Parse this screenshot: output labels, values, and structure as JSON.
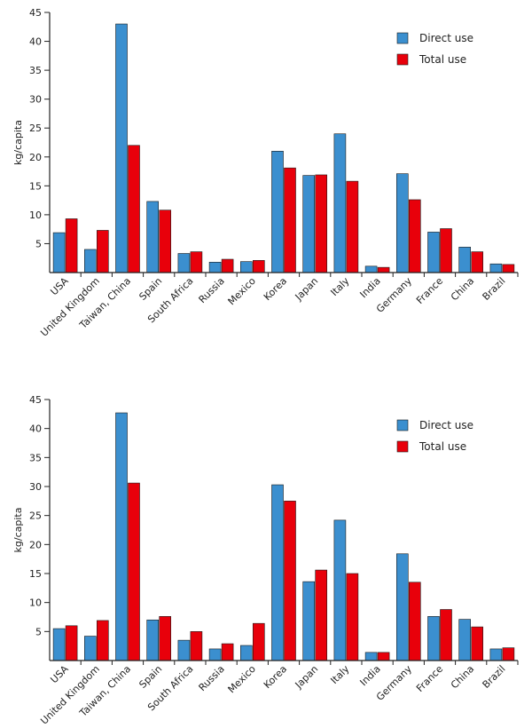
{
  "colors": {
    "direct": "#3b8fcf",
    "total": "#e8000b",
    "axis": "#222222"
  },
  "chart_data": [
    {
      "type": "bar",
      "ylabel": "kg/capita",
      "ylim": [
        0,
        45
      ],
      "yticks": [
        5,
        10,
        15,
        20,
        25,
        30,
        35,
        40,
        45
      ],
      "categories": [
        "USA",
        "United Kingdom",
        "Taiwan, China",
        "Spain",
        "South Africa",
        "Russia",
        "Mexico",
        "Korea",
        "Japan",
        "Italy",
        "India",
        "Germany",
        "France",
        "China",
        "Brazil"
      ],
      "series": [
        {
          "name": "Direct use",
          "values": [
            6.9,
            4.0,
            43.0,
            12.3,
            3.3,
            1.8,
            1.9,
            21.0,
            16.8,
            24.0,
            1.1,
            17.1,
            7.0,
            4.4,
            1.5
          ]
        },
        {
          "name": "Total use",
          "values": [
            9.3,
            7.3,
            22.0,
            10.8,
            3.6,
            2.3,
            2.1,
            18.1,
            16.9,
            15.8,
            0.9,
            12.6,
            7.6,
            3.6,
            1.4
          ]
        }
      ],
      "legend": "top-right"
    },
    {
      "type": "bar",
      "ylabel": "kg/capita",
      "ylim": [
        0,
        45
      ],
      "yticks": [
        5,
        10,
        15,
        20,
        25,
        30,
        35,
        40,
        45
      ],
      "categories": [
        "USA",
        "United Kingdom",
        "Taiwan, China",
        "Spain",
        "South Africa",
        "Russia",
        "Mexico",
        "Korea",
        "Japan",
        "Italy",
        "India",
        "Germany",
        "France",
        "China",
        "Brazil"
      ],
      "series": [
        {
          "name": "Direct use",
          "values": [
            5.5,
            4.2,
            42.7,
            7.0,
            3.5,
            2.0,
            2.6,
            30.3,
            13.6,
            24.2,
            1.4,
            18.4,
            7.6,
            7.1,
            2.0
          ]
        },
        {
          "name": "Total use",
          "values": [
            6.0,
            6.9,
            30.6,
            7.6,
            5.0,
            2.9,
            6.4,
            27.5,
            15.6,
            15.0,
            1.4,
            13.5,
            8.8,
            5.8,
            2.2
          ]
        }
      ],
      "legend": "top-right"
    }
  ]
}
